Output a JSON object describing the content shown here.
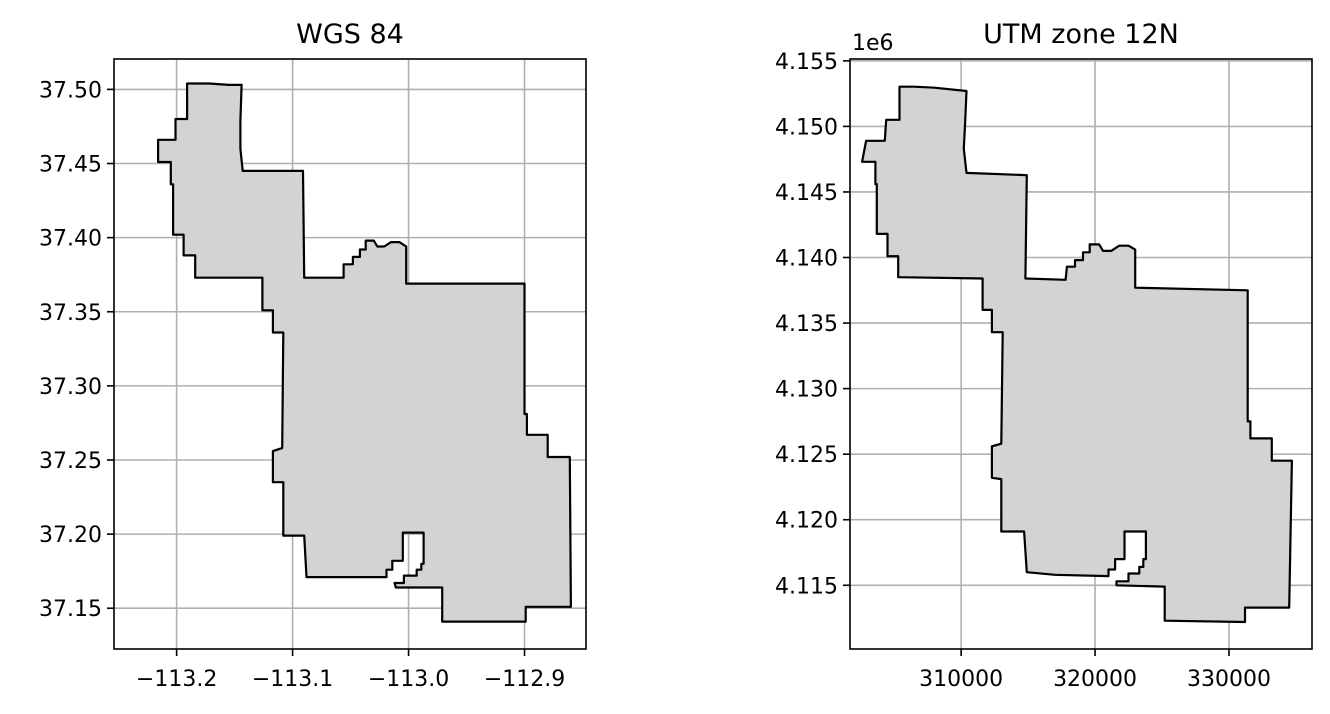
{
  "chart_data": [
    {
      "type": "map",
      "title": "WGS 84",
      "xlim": [
        -113.254,
        -112.847
      ],
      "ylim": [
        37.1225,
        37.5205
      ],
      "xticks": [
        -113.2,
        -113.1,
        -113.0,
        -112.9
      ],
      "xtick_labels": [
        "−113.2",
        "−113.1",
        "−113.0",
        "−112.9"
      ],
      "yticks": [
        37.15,
        37.2,
        37.25,
        37.3,
        37.35,
        37.4,
        37.45,
        37.5
      ],
      "ytick_labels": [
        "37.15",
        "37.20",
        "37.25",
        "37.30",
        "37.35",
        "37.40",
        "37.45",
        "37.50"
      ],
      "grid": true,
      "fill_color": "#d3d3d3",
      "edge_color": "#000000",
      "polygon": [
        [
          -113.172,
          37.504
        ],
        [
          -113.155,
          37.503
        ],
        [
          -113.144,
          37.503
        ],
        [
          -113.145,
          37.479
        ],
        [
          -113.145,
          37.46
        ],
        [
          -113.143,
          37.445
        ],
        [
          -113.091,
          37.445
        ],
        [
          -113.09,
          37.373
        ],
        [
          -113.056,
          37.373
        ],
        [
          -113.056,
          37.382
        ],
        [
          -113.048,
          37.382
        ],
        [
          -113.048,
          37.387
        ],
        [
          -113.042,
          37.387
        ],
        [
          -113.042,
          37.392
        ],
        [
          -113.037,
          37.392
        ],
        [
          -113.037,
          37.398
        ],
        [
          -113.03,
          37.398
        ],
        [
          -113.027,
          37.394
        ],
        [
          -113.021,
          37.394
        ],
        [
          -113.015,
          37.397
        ],
        [
          -113.008,
          37.397
        ],
        [
          -113.002,
          37.394
        ],
        [
          -113.002,
          37.369
        ],
        [
          -112.955,
          37.369
        ],
        [
          -112.9,
          37.369
        ],
        [
          -112.9,
          37.281
        ],
        [
          -112.898,
          37.281
        ],
        [
          -112.898,
          37.267
        ],
        [
          -112.88,
          37.267
        ],
        [
          -112.88,
          37.252
        ],
        [
          -112.861,
          37.252
        ],
        [
          -112.86,
          37.151
        ],
        [
          -112.899,
          37.151
        ],
        [
          -112.899,
          37.141
        ],
        [
          -112.971,
          37.141
        ],
        [
          -112.971,
          37.164
        ],
        [
          -113.011,
          37.164
        ],
        [
          -113.012,
          37.167
        ],
        [
          -113.004,
          37.167
        ],
        [
          -113.004,
          37.172
        ],
        [
          -112.993,
          37.172
        ],
        [
          -112.993,
          37.176
        ],
        [
          -112.989,
          37.176
        ],
        [
          -112.989,
          37.18
        ],
        [
          -112.987,
          37.18
        ],
        [
          -112.987,
          37.185
        ],
        [
          -112.987,
          37.201
        ],
        [
          -113.005,
          37.201
        ],
        [
          -113.005,
          37.182
        ],
        [
          -113.014,
          37.182
        ],
        [
          -113.014,
          37.176
        ],
        [
          -113.019,
          37.176
        ],
        [
          -113.019,
          37.171
        ],
        [
          -113.044,
          37.171
        ],
        [
          -113.088,
          37.171
        ],
        [
          -113.09,
          37.199
        ],
        [
          -113.108,
          37.199
        ],
        [
          -113.108,
          37.235
        ],
        [
          -113.117,
          37.235
        ],
        [
          -113.117,
          37.256
        ],
        [
          -113.109,
          37.258
        ],
        [
          -113.108,
          37.336
        ],
        [
          -113.117,
          37.336
        ],
        [
          -113.117,
          37.351
        ],
        [
          -113.126,
          37.351
        ],
        [
          -113.126,
          37.373
        ],
        [
          -113.184,
          37.373
        ],
        [
          -113.184,
          37.388
        ],
        [
          -113.194,
          37.388
        ],
        [
          -113.194,
          37.402
        ],
        [
          -113.203,
          37.402
        ],
        [
          -113.203,
          37.436
        ],
        [
          -113.205,
          37.436
        ],
        [
          -113.205,
          37.451
        ],
        [
          -113.216,
          37.451
        ],
        [
          -113.216,
          37.466
        ],
        [
          -113.201,
          37.466
        ],
        [
          -113.201,
          37.48
        ],
        [
          -113.191,
          37.48
        ],
        [
          -113.191,
          37.504
        ]
      ]
    },
    {
      "type": "map",
      "title": "UTM zone 12N",
      "offset_label": "1e6",
      "xlim": [
        301700,
        336200
      ],
      "ylim": [
        4110140,
        4155140
      ],
      "xticks": [
        310000,
        320000,
        330000
      ],
      "xtick_labels": [
        "310000",
        "320000",
        "330000"
      ],
      "yticks": [
        4115000,
        4120000,
        4125000,
        4130000,
        4135000,
        4140000,
        4145000,
        4150000,
        4155000
      ],
      "ytick_labels": [
        "4.115",
        "4.120",
        "4.125",
        "4.130",
        "4.135",
        "4.140",
        "4.145",
        "4.150",
        "4.155"
      ],
      "grid": true,
      "fill_color": "#d3d3d3",
      "edge_color": "#000000",
      "polygon": [
        [
          306500,
          4153030
        ],
        [
          308000,
          4152950
        ],
        [
          310400,
          4152700
        ],
        [
          310300,
          4150400
        ],
        [
          310200,
          4148300
        ],
        [
          310400,
          4146450
        ],
        [
          314900,
          4146280
        ],
        [
          314800,
          4138400
        ],
        [
          317800,
          4138300
        ],
        [
          317900,
          4139300
        ],
        [
          318500,
          4139300
        ],
        [
          318500,
          4139800
        ],
        [
          319100,
          4139800
        ],
        [
          319100,
          4140400
        ],
        [
          319600,
          4140400
        ],
        [
          319600,
          4141000
        ],
        [
          320300,
          4141000
        ],
        [
          320600,
          4140500
        ],
        [
          321200,
          4140500
        ],
        [
          321800,
          4140900
        ],
        [
          322500,
          4140900
        ],
        [
          323000,
          4140600
        ],
        [
          323000,
          4137700
        ],
        [
          331400,
          4137500
        ],
        [
          331400,
          4127500
        ],
        [
          331600,
          4127500
        ],
        [
          331600,
          4126200
        ],
        [
          333200,
          4126200
        ],
        [
          333200,
          4124500
        ],
        [
          334700,
          4124500
        ],
        [
          334500,
          4113300
        ],
        [
          331200,
          4113300
        ],
        [
          331200,
          4112200
        ],
        [
          325200,
          4112300
        ],
        [
          325200,
          4114900
        ],
        [
          321600,
          4115000
        ],
        [
          321600,
          4115300
        ],
        [
          322500,
          4115300
        ],
        [
          322500,
          4115900
        ],
        [
          323300,
          4115900
        ],
        [
          323300,
          4116400
        ],
        [
          323600,
          4116400
        ],
        [
          323600,
          4117000
        ],
        [
          323800,
          4117000
        ],
        [
          323800,
          4117500
        ],
        [
          323800,
          4119100
        ],
        [
          322200,
          4119100
        ],
        [
          322200,
          4117000
        ],
        [
          321500,
          4117000
        ],
        [
          321500,
          4116200
        ],
        [
          321000,
          4116200
        ],
        [
          321000,
          4115700
        ],
        [
          317000,
          4115800
        ],
        [
          314900,
          4116000
        ],
        [
          314700,
          4119100
        ],
        [
          313000,
          4119100
        ],
        [
          313000,
          4123100
        ],
        [
          312300,
          4123200
        ],
        [
          312300,
          4125600
        ],
        [
          313000,
          4125800
        ],
        [
          313100,
          4134300
        ],
        [
          312300,
          4134300
        ],
        [
          312300,
          4136000
        ],
        [
          311600,
          4136000
        ],
        [
          311600,
          4138400
        ],
        [
          305300,
          4138500
        ],
        [
          305300,
          4140100
        ],
        [
          304500,
          4140100
        ],
        [
          304500,
          4141800
        ],
        [
          303700,
          4141800
        ],
        [
          303700,
          4145600
        ],
        [
          303600,
          4145600
        ],
        [
          303600,
          4147300
        ],
        [
          302600,
          4147300
        ],
        [
          302900,
          4148900
        ],
        [
          304300,
          4148900
        ],
        [
          304400,
          4150500
        ],
        [
          305400,
          4150500
        ],
        [
          305400,
          4153030
        ]
      ]
    }
  ]
}
